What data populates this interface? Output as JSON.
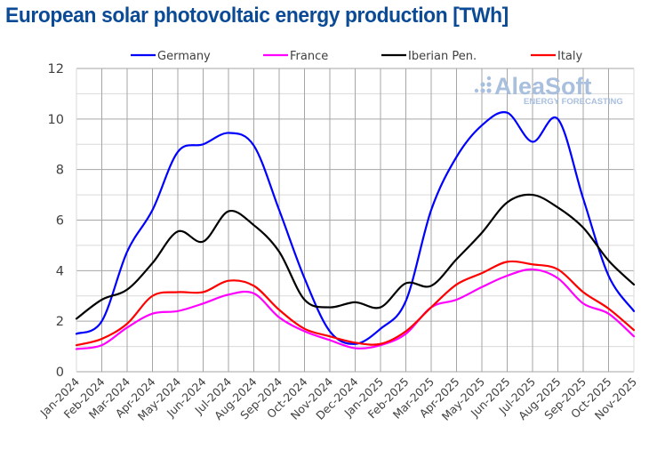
{
  "chart_data": {
    "type": "line",
    "title": "European solar photovoltaic energy production [TWh]",
    "xlabel": "",
    "ylabel": "",
    "ylim": [
      0,
      12
    ],
    "yticks": [
      0,
      2,
      4,
      6,
      8,
      10,
      12
    ],
    "grid": true,
    "legend_position": "top",
    "categories": [
      "Jan-2024",
      "Feb-2024",
      "Mar-2024",
      "Apr-2024",
      "May-2024",
      "Jun-2024",
      "Jul-2024",
      "Aug-2024",
      "Sep-2024",
      "Oct-2024",
      "Nov-2024",
      "Dec-2024",
      "Jan-2025",
      "Feb-2025",
      "Mar-2025",
      "Apr-2025",
      "May-2025",
      "Jun-2025",
      "Jul-2025",
      "Aug-2025",
      "Sep-2025",
      "Oct-2025",
      "Nov-2025"
    ],
    "series": [
      {
        "name": "Germany",
        "color": "#0000ff",
        "values": [
          1.5,
          2.0,
          4.75,
          6.4,
          8.7,
          9.0,
          9.45,
          8.95,
          6.4,
          3.7,
          1.6,
          1.1,
          1.7,
          2.8,
          6.4,
          8.5,
          9.75,
          10.25,
          9.1,
          10.0,
          6.85,
          3.8,
          2.4
        ]
      },
      {
        "name": "France",
        "color": "#ff00ff",
        "values": [
          0.9,
          1.05,
          1.75,
          2.3,
          2.4,
          2.7,
          3.05,
          3.1,
          2.15,
          1.6,
          1.25,
          0.93,
          1.05,
          1.5,
          2.55,
          2.85,
          3.35,
          3.8,
          4.05,
          3.7,
          2.7,
          2.3,
          1.4
        ]
      },
      {
        "name": "Iberian Pen.",
        "color": "#000000",
        "values": [
          2.1,
          2.85,
          3.25,
          4.3,
          5.55,
          5.15,
          6.35,
          5.8,
          4.75,
          2.85,
          2.55,
          2.75,
          2.55,
          3.5,
          3.4,
          4.45,
          5.5,
          6.7,
          7.0,
          6.5,
          5.7,
          4.4,
          3.45
        ]
      },
      {
        "name": "Italy",
        "color": "#ff0000",
        "values": [
          1.05,
          1.3,
          1.9,
          3.0,
          3.15,
          3.15,
          3.6,
          3.4,
          2.45,
          1.7,
          1.4,
          1.15,
          1.1,
          1.6,
          2.55,
          3.45,
          3.9,
          4.35,
          4.25,
          4.05,
          3.15,
          2.5,
          1.65
        ]
      }
    ]
  },
  "watermark": {
    "brand": "AleaSoft",
    "tagline": "ENERGY FORECASTING"
  }
}
